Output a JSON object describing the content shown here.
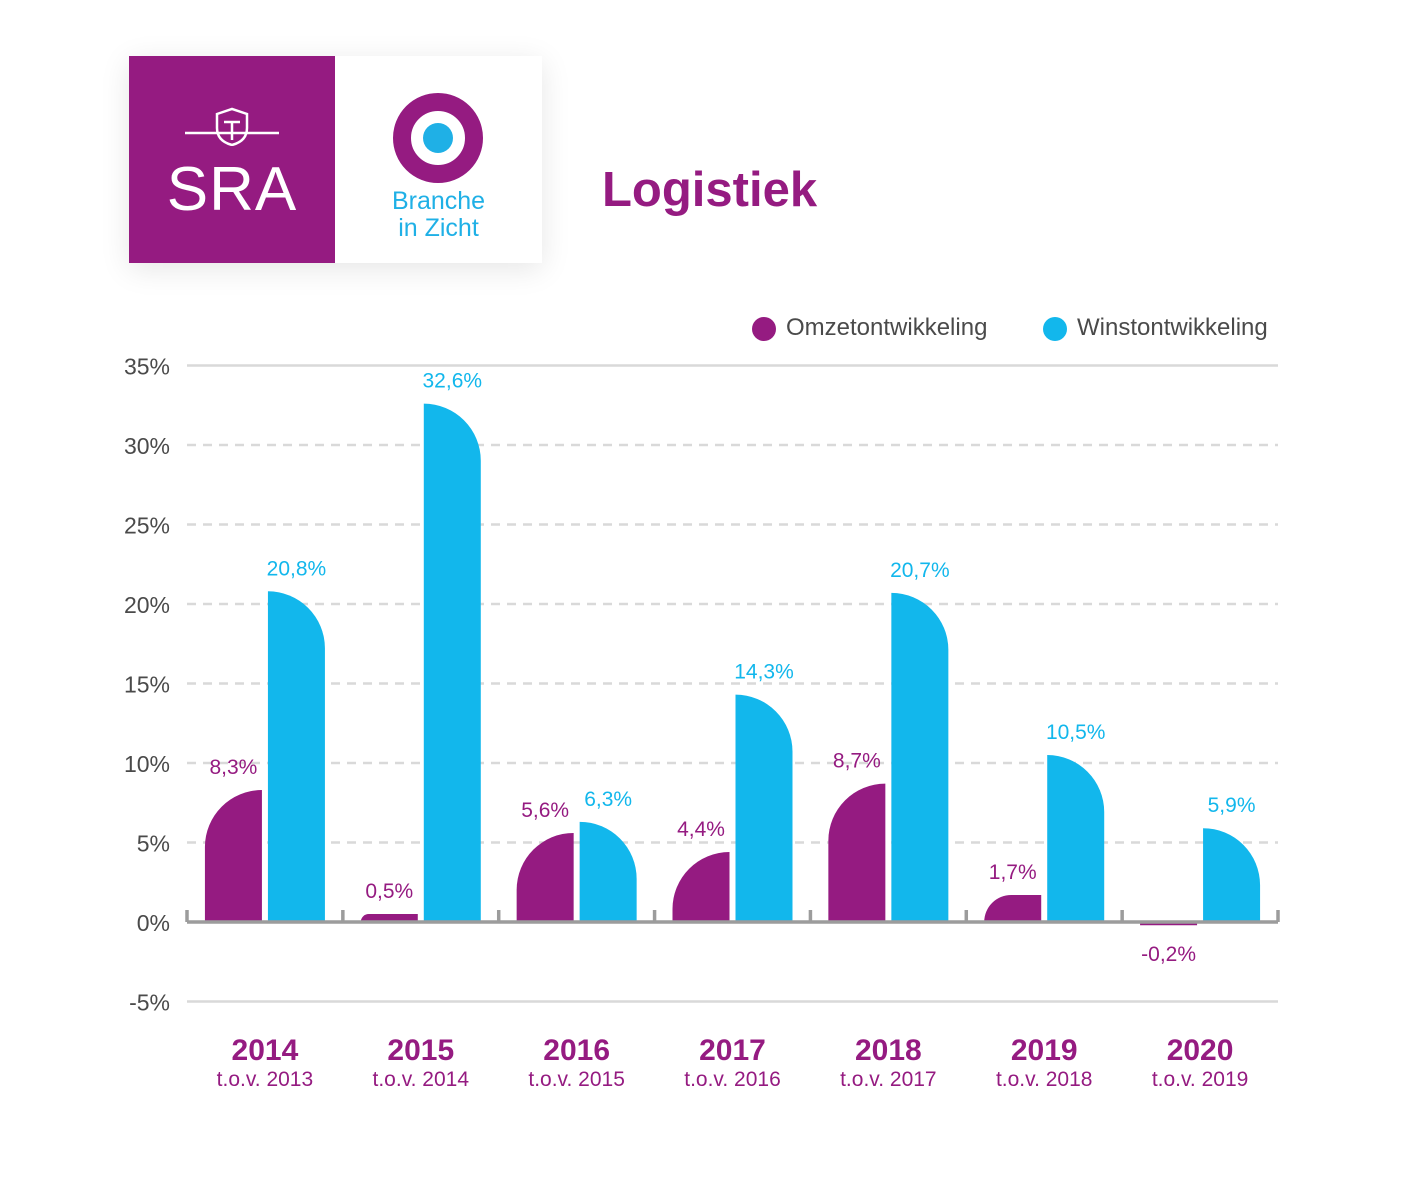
{
  "header": {
    "logo_left": {
      "text": "SRA"
    },
    "logo_right": {
      "text_line1": "Branche",
      "text_line2": "in Zicht"
    },
    "title": "Logistiek"
  },
  "colors": {
    "omzet": "#951b81",
    "winst": "#12b7ec",
    "grid": "#d9d9d9",
    "axis": "#9c9c9c",
    "ticks": "#4a4a4a"
  },
  "chart_data": {
    "type": "bar",
    "title": "Logistiek",
    "categories": [
      "2014",
      "2015",
      "2016",
      "2017",
      "2018",
      "2019",
      "2020"
    ],
    "category_sublabels": [
      "t.o.v. 2013",
      "t.o.v. 2014",
      "t.o.v. 2015",
      "t.o.v. 2016",
      "t.o.v. 2017",
      "t.o.v. 2018",
      "t.o.v. 2019"
    ],
    "series": [
      {
        "name": "Omzetontwikkeling",
        "color": "#951b81",
        "values": [
          8.3,
          0.5,
          5.6,
          4.4,
          8.7,
          1.7,
          -0.2
        ],
        "labels": [
          "8,3%",
          "0,5%",
          "5,6%",
          "4,4%",
          "8,7%",
          "1,7%",
          "-0,2%"
        ]
      },
      {
        "name": "Winstontwikkeling",
        "color": "#12b7ec",
        "values": [
          20.8,
          32.6,
          6.3,
          14.3,
          20.7,
          10.5,
          5.9
        ],
        "labels": [
          "20,8%",
          "32,6%",
          "6,3%",
          "14,3%",
          "20,7%",
          "10,5%",
          "5,9%"
        ]
      }
    ],
    "ylim": [
      -5,
      35
    ],
    "yticks": [
      35,
      30,
      25,
      20,
      15,
      10,
      5,
      0,
      -5
    ],
    "ytick_labels": [
      "35%",
      "30%",
      "25%",
      "20%",
      "15%",
      "10%",
      "5%",
      "0%",
      "-5%"
    ],
    "legend": "top-right",
    "grid": true
  }
}
